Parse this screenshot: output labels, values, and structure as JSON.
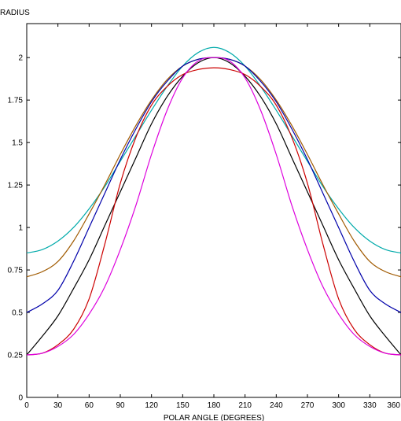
{
  "chart_data": {
    "type": "line",
    "title": "",
    "xlabel": "POLAR ANGLE (DEGREES)",
    "ylabel": "RADIUS",
    "xlim": [
      0,
      360
    ],
    "ylim": [
      0,
      2.2
    ],
    "xticks": [
      0,
      30,
      60,
      90,
      120,
      150,
      180,
      210,
      240,
      270,
      300,
      330,
      360
    ],
    "yticks": [
      0,
      0.25,
      0.5,
      0.75,
      1,
      1.25,
      1.5,
      1.75,
      2
    ],
    "ytick_labels": [
      "0",
      "0.25",
      "0.5",
      "0.75",
      "1",
      "1.25",
      "1.5",
      "1.75",
      "2"
    ],
    "grid": false,
    "legend": "none",
    "x": [
      0,
      15,
      30,
      45,
      60,
      75,
      90,
      105,
      120,
      135,
      150,
      165,
      180,
      195,
      210,
      225,
      240,
      255,
      270,
      285,
      300,
      315,
      330,
      345,
      360
    ],
    "series": [
      {
        "color": "#00aaaa",
        "values": [
          0.85,
          0.87,
          0.92,
          1.0,
          1.11,
          1.24,
          1.39,
          1.54,
          1.69,
          1.83,
          1.95,
          2.03,
          2.06,
          2.03,
          1.95,
          1.83,
          1.69,
          1.54,
          1.39,
          1.24,
          1.11,
          1.0,
          0.92,
          0.87,
          0.85
        ]
      },
      {
        "color": "#a05a00",
        "values": [
          0.71,
          0.74,
          0.8,
          0.92,
          1.08,
          1.25,
          1.43,
          1.6,
          1.75,
          1.87,
          1.95,
          1.99,
          2.0,
          1.99,
          1.95,
          1.87,
          1.75,
          1.6,
          1.43,
          1.25,
          1.08,
          0.92,
          0.8,
          0.74,
          0.71
        ]
      },
      {
        "color": "#0000aa",
        "values": [
          0.5,
          0.55,
          0.63,
          0.8,
          1.0,
          1.2,
          1.4,
          1.58,
          1.74,
          1.86,
          1.95,
          1.99,
          2.0,
          1.99,
          1.95,
          1.86,
          1.74,
          1.58,
          1.4,
          1.2,
          1.0,
          0.8,
          0.63,
          0.55,
          0.5
        ]
      },
      {
        "color": "#000000",
        "values": [
          0.25,
          0.36,
          0.48,
          0.64,
          0.81,
          1.01,
          1.21,
          1.41,
          1.61,
          1.77,
          1.89,
          1.97,
          2.0,
          1.97,
          1.89,
          1.77,
          1.61,
          1.41,
          1.21,
          1.01,
          0.81,
          0.64,
          0.48,
          0.36,
          0.25
        ]
      },
      {
        "color": "#cc0000",
        "values": [
          0.25,
          0.26,
          0.31,
          0.4,
          0.58,
          0.9,
          1.26,
          1.53,
          1.72,
          1.83,
          1.9,
          1.93,
          1.94,
          1.93,
          1.9,
          1.83,
          1.72,
          1.53,
          1.26,
          0.9,
          0.58,
          0.4,
          0.31,
          0.26,
          0.25
        ]
      },
      {
        "color": "#dd00dd",
        "values": [
          0.25,
          0.26,
          0.3,
          0.37,
          0.49,
          0.65,
          0.87,
          1.13,
          1.43,
          1.69,
          1.88,
          1.98,
          2.0,
          1.98,
          1.88,
          1.69,
          1.43,
          1.13,
          0.87,
          0.65,
          0.49,
          0.37,
          0.3,
          0.26,
          0.25
        ]
      }
    ]
  }
}
